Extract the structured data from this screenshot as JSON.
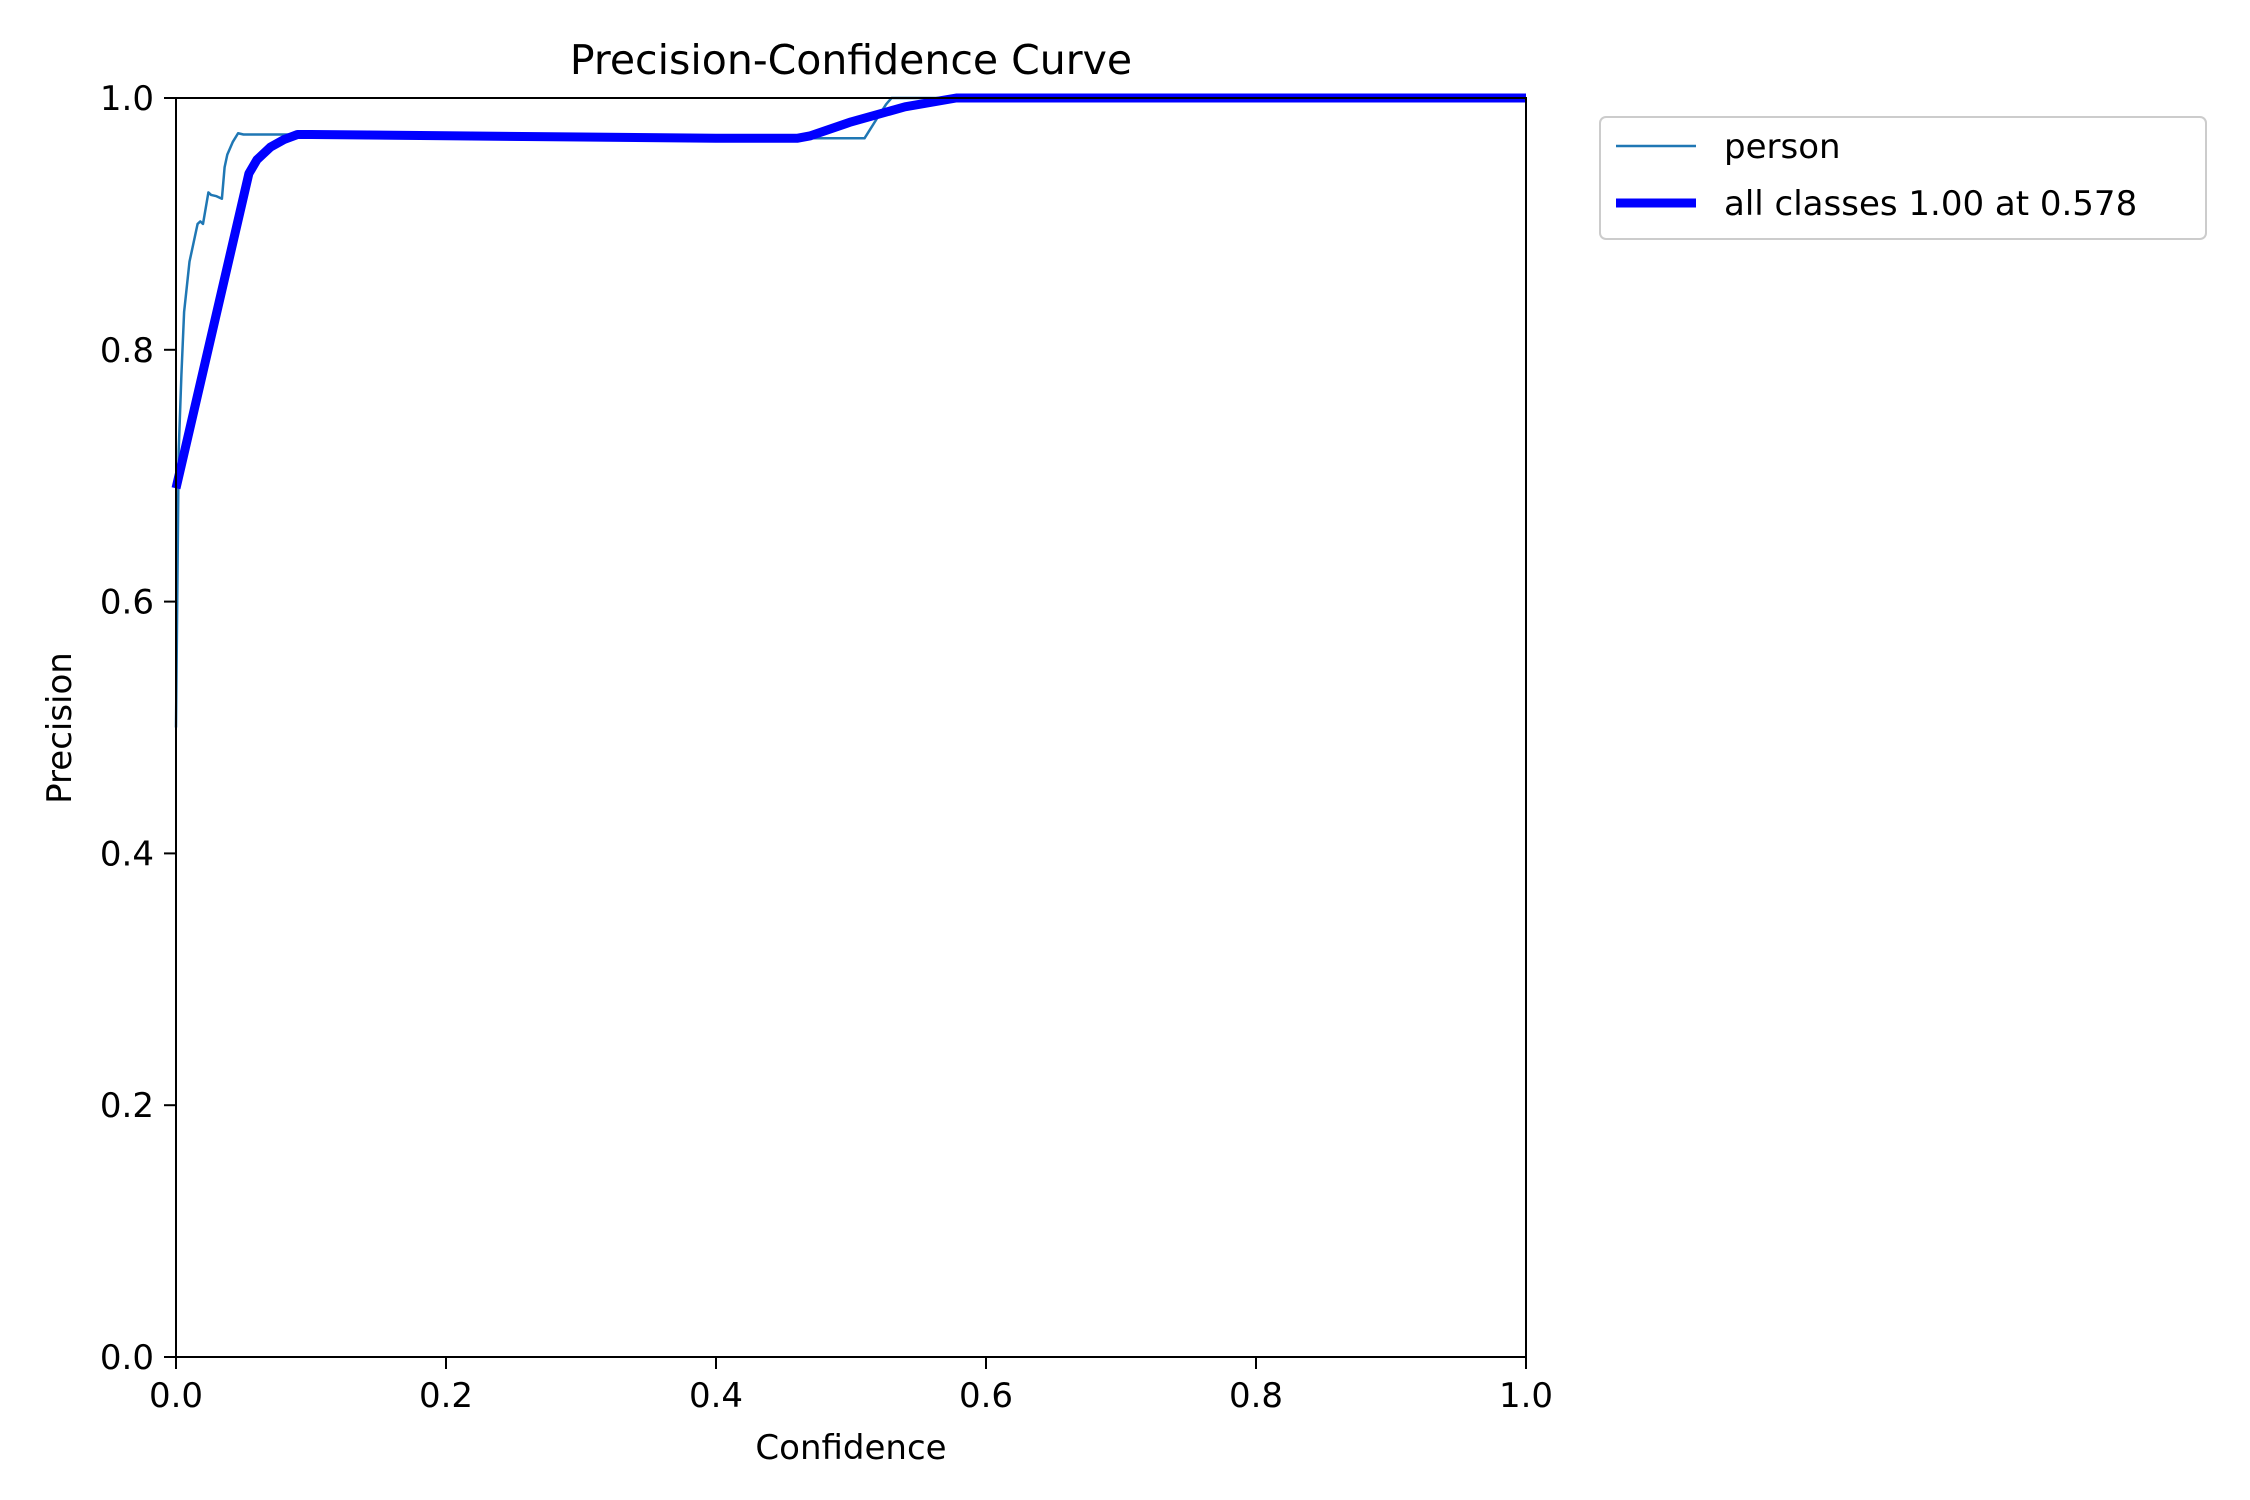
{
  "chart_data": {
    "type": "line",
    "title": "Precision-Confidence Curve",
    "xlabel": "Confidence",
    "ylabel": "Precision",
    "xlim": [
      0.0,
      1.0
    ],
    "ylim": [
      0.0,
      1.0
    ],
    "xticks": [
      "0.0",
      "0.2",
      "0.4",
      "0.6",
      "0.8",
      "1.0"
    ],
    "yticks": [
      "0.0",
      "0.2",
      "0.4",
      "0.6",
      "0.8",
      "1.0"
    ],
    "grid": false,
    "legend_position": "upper-right, outside the axes",
    "series": [
      {
        "name": "person",
        "color": "#1f77b4",
        "linewidth": "thin",
        "x": [
          0.0,
          0.002,
          0.004,
          0.006,
          0.008,
          0.01,
          0.012,
          0.014,
          0.016,
          0.018,
          0.02,
          0.024,
          0.026,
          0.03,
          0.034,
          0.036,
          0.038,
          0.042,
          0.046,
          0.05,
          0.06,
          0.08,
          0.1,
          0.2,
          0.3,
          0.4,
          0.46,
          0.5,
          0.51,
          0.52,
          0.526,
          0.53,
          0.6,
          0.8,
          1.0
        ],
        "y": [
          0.5,
          0.72,
          0.78,
          0.83,
          0.85,
          0.87,
          0.88,
          0.89,
          0.9,
          0.902,
          0.9,
          0.925,
          0.923,
          0.922,
          0.92,
          0.945,
          0.955,
          0.965,
          0.972,
          0.971,
          0.971,
          0.971,
          0.971,
          0.97,
          0.969,
          0.968,
          0.968,
          0.968,
          0.968,
          0.985,
          0.995,
          1.0,
          1.0,
          1.0,
          1.0
        ]
      },
      {
        "name": "all classes 1.00 at 0.578",
        "color": "#0000ff",
        "linewidth": "thick",
        "x": [
          0.0,
          0.054,
          0.06,
          0.07,
          0.08,
          0.09,
          0.1,
          0.2,
          0.3,
          0.4,
          0.46,
          0.47,
          0.5,
          0.54,
          0.578,
          0.6,
          0.8,
          1.0
        ],
        "y": [
          0.69,
          0.94,
          0.951,
          0.961,
          0.967,
          0.971,
          0.971,
          0.97,
          0.969,
          0.968,
          0.968,
          0.97,
          0.981,
          0.993,
          1.0,
          1.0,
          1.0,
          1.0
        ]
      }
    ]
  }
}
